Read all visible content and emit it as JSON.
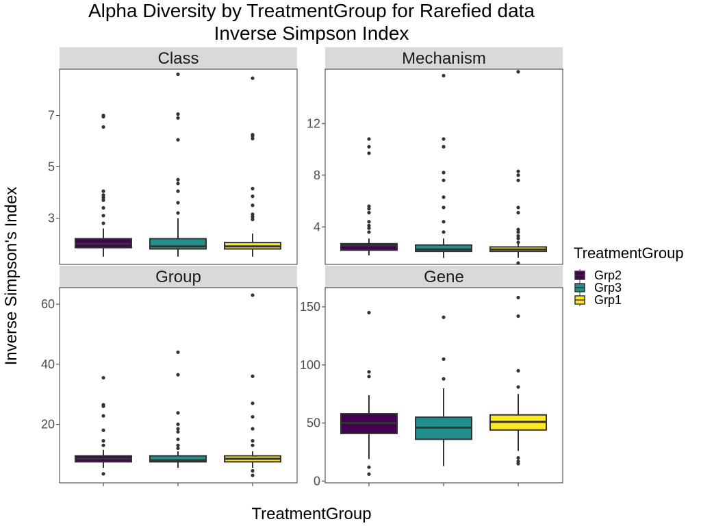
{
  "figure": {
    "title_line1": "Alpha Diversity by TreatmentGroup for Rarefied data",
    "title_line2": "Inverse Simpson Index",
    "xlabel": "TreatmentGroup",
    "ylabel": "Inverse Simpson's Index"
  },
  "legend": {
    "title": "TreatmentGroup",
    "items": [
      {
        "label": "Grp2",
        "color": "#440154"
      },
      {
        "label": "Grp3",
        "color": "#21908C"
      },
      {
        "label": "Grp1",
        "color": "#FDE725"
      }
    ]
  },
  "chart_data": [
    {
      "type": "boxplot",
      "panel": "Class",
      "categories": [
        "Grp2",
        "Grp3",
        "Grp1"
      ],
      "ylim": [
        1.2,
        8.8
      ],
      "yticks": [
        3,
        5,
        7
      ],
      "boxes": [
        {
          "group": "Grp2",
          "lower_whisker": 1.5,
          "q1": 1.85,
          "median": 2.0,
          "q3": 2.2,
          "upper_whisker": 2.6,
          "outliers": [
            2.8,
            3.1,
            3.4,
            3.7,
            3.8,
            3.9,
            4.05,
            6.55,
            6.95,
            7.0
          ]
        },
        {
          "group": "Grp3",
          "lower_whisker": 1.5,
          "q1": 1.8,
          "median": 1.9,
          "q3": 2.2,
          "upper_whisker": 3.0,
          "outliers": [
            3.2,
            3.6,
            4.05,
            4.35,
            4.5,
            6.05,
            6.9,
            7.05,
            8.6
          ]
        },
        {
          "group": "Grp1",
          "lower_whisker": 1.5,
          "q1": 1.8,
          "median": 1.9,
          "q3": 2.05,
          "upper_whisker": 2.4,
          "outliers": [
            2.95,
            3.05,
            3.15,
            3.5,
            3.85,
            4.15,
            6.1,
            6.2,
            6.25,
            8.45
          ]
        }
      ]
    },
    {
      "type": "boxplot",
      "panel": "Mechanism",
      "categories": [
        "Grp2",
        "Grp3",
        "Grp1"
      ],
      "ylim": [
        1.1,
        16.2
      ],
      "yticks": [
        4,
        8,
        12
      ],
      "boxes": [
        {
          "group": "Grp2",
          "lower_whisker": 1.8,
          "q1": 2.2,
          "median": 2.55,
          "q3": 2.7,
          "upper_whisker": 3.1,
          "outliers": [
            3.6,
            3.9,
            4.1,
            4.4,
            5.1,
            5.4,
            5.6,
            9.7,
            10.2,
            10.8
          ]
        },
        {
          "group": "Grp3",
          "lower_whisker": 1.6,
          "q1": 2.1,
          "median": 2.25,
          "q3": 2.6,
          "upper_whisker": 3.1,
          "outliers": [
            3.6,
            4.4,
            5.5,
            6.3,
            7.6,
            8.2,
            10.2,
            10.8,
            15.7
          ]
        },
        {
          "group": "Grp1",
          "lower_whisker": 1.6,
          "q1": 2.1,
          "median": 2.25,
          "q3": 2.45,
          "upper_whisker": 2.7,
          "outliers": [
            1.2,
            2.8,
            3.1,
            3.3,
            3.6,
            3.8,
            5.1,
            5.5,
            7.6,
            8.0,
            8.3,
            16.0
          ]
        }
      ]
    },
    {
      "type": "boxplot",
      "panel": "Group",
      "categories": [
        "Grp2",
        "Grp3",
        "Grp1"
      ],
      "ylim": [
        0.5,
        65.5
      ],
      "yticks": [
        20,
        40,
        60
      ],
      "boxes": [
        {
          "group": "Grp2",
          "lower_whisker": 5.5,
          "q1": 7.5,
          "median": 8.5,
          "q3": 9.5,
          "upper_whisker": 11.5,
          "outliers": [
            3.5,
            13.0,
            14.5,
            18.0,
            22.8,
            26.0,
            26.5,
            35.5
          ]
        },
        {
          "group": "Grp3",
          "lower_whisker": 5.5,
          "q1": 7.5,
          "median": 8.0,
          "q3": 9.5,
          "upper_whisker": 11.0,
          "outliers": [
            12.0,
            13.0,
            15.0,
            17.5,
            18.5,
            20.0,
            23.8,
            36.5,
            44.0
          ]
        },
        {
          "group": "Grp1",
          "lower_whisker": 5.5,
          "q1": 7.5,
          "median": 8.5,
          "q3": 9.5,
          "upper_whisker": 11.0,
          "outliers": [
            3.0,
            4.5,
            13.0,
            14.5,
            18.5,
            22.5,
            27.0,
            36.0,
            63.0
          ]
        }
      ]
    },
    {
      "type": "boxplot",
      "panel": "Gene",
      "categories": [
        "Grp2",
        "Grp3",
        "Grp1"
      ],
      "ylim": [
        -1.5,
        166.5
      ],
      "yticks": [
        0,
        50,
        100,
        150
      ],
      "boxes": [
        {
          "group": "Grp2",
          "lower_whisker": 19,
          "q1": 41,
          "median": 50,
          "q3": 58,
          "upper_whisker": 74,
          "outliers": [
            6,
            12,
            90,
            94,
            145
          ]
        },
        {
          "group": "Grp3",
          "lower_whisker": 13,
          "q1": 36,
          "median": 46,
          "q3": 55,
          "upper_whisker": 80,
          "outliers": [
            88,
            105,
            141
          ]
        },
        {
          "group": "Grp1",
          "lower_whisker": 26,
          "q1": 44,
          "median": 51,
          "q3": 57,
          "upper_whisker": 75,
          "outliers": [
            15,
            17,
            20,
            81,
            95,
            142,
            158
          ]
        }
      ]
    }
  ]
}
